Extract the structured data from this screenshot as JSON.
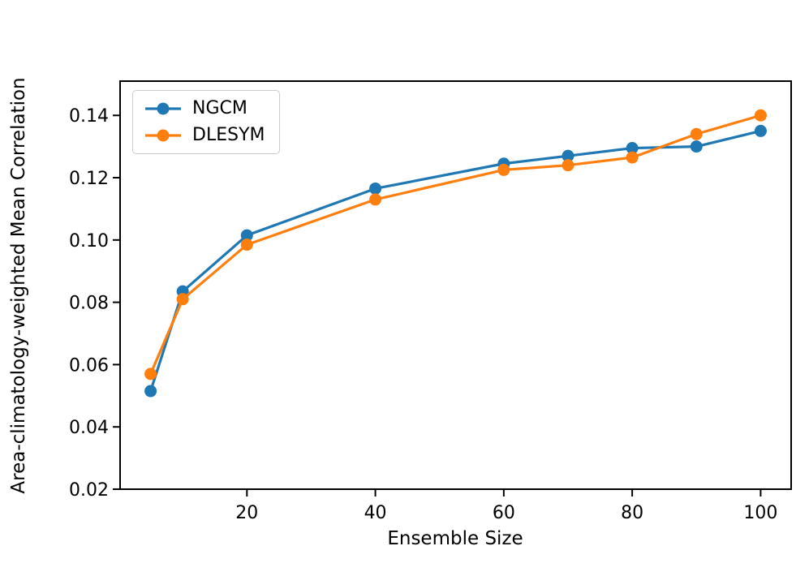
{
  "chart_data": {
    "type": "line",
    "xlabel": "Ensemble Size",
    "ylabel": "Area-climatology-weighted Mean Correlation",
    "x": [
      5,
      10,
      20,
      40,
      60,
      70,
      80,
      90,
      100
    ],
    "series": [
      {
        "name": "NGCM",
        "color": "#1f77b4",
        "values": [
          0.0515,
          0.0835,
          0.1015,
          0.1165,
          0.1245,
          0.127,
          0.1295,
          0.13,
          0.135
        ]
      },
      {
        "name": "DLESYM",
        "color": "#ff7f0e",
        "values": [
          0.057,
          0.081,
          0.0985,
          0.113,
          0.1225,
          0.124,
          0.1265,
          0.134,
          0.14
        ]
      }
    ],
    "xlim": [
      0.25,
      104.75
    ],
    "ylim": [
      0.02,
      0.151
    ],
    "xticks": [
      20,
      40,
      60,
      80,
      100
    ],
    "yticks": [
      0.02,
      0.04,
      0.06,
      0.08,
      0.1,
      0.12,
      0.14
    ],
    "grid": false,
    "legend_position": "upper left",
    "marker": "circle",
    "axis_color": "#000000"
  }
}
